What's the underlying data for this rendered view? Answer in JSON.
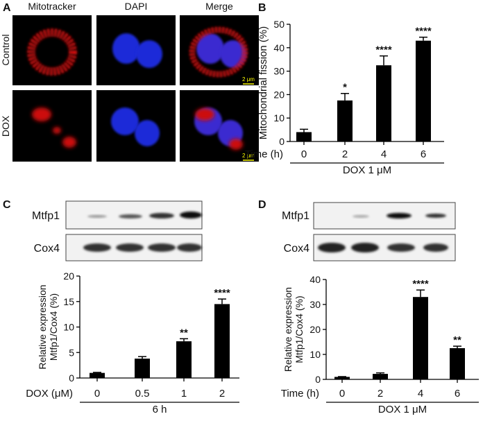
{
  "figure": {
    "panel_labels": [
      "A",
      "B",
      "C",
      "D"
    ],
    "microscopy": {
      "columns": [
        "Mitotracker",
        "DAPI",
        "Merge"
      ],
      "rows": [
        "Control",
        "DOX"
      ],
      "scale_bars": [
        "2 μm",
        "2 μm"
      ]
    },
    "blots": [
      {
        "bands": [
          "Mtfp1",
          "Cox4"
        ]
      },
      {
        "bands": [
          "Mtfp1",
          "Cox4"
        ]
      }
    ]
  },
  "chart_data": [
    {
      "type": "bar",
      "ylabel": "Mitochondrial fission (%)",
      "x_row_label": "Time (h)",
      "group_label": "DOX 1 μM",
      "categories": [
        "0",
        "2",
        "4",
        "6"
      ],
      "values": [
        4,
        17.5,
        32.5,
        43
      ],
      "errors": [
        1.2,
        3,
        4,
        1.5
      ],
      "annotations": [
        null,
        "*",
        "****",
        "****"
      ],
      "color": "#000000",
      "ylim": [
        0,
        50
      ],
      "yticks": [
        0,
        10,
        20,
        30,
        40,
        50
      ]
    },
    {
      "type": "bar",
      "ylabel": [
        "Relative expression",
        "Mtfp1/Cox4 (%)"
      ],
      "x_row_label": "DOX (μM)",
      "group_label": "6 h",
      "categories": [
        "0",
        "0.5",
        "1",
        "2"
      ],
      "values": [
        1,
        3.8,
        7.2,
        14.5
      ],
      "errors": [
        0.1,
        0.4,
        0.5,
        1
      ],
      "annotations": [
        null,
        null,
        "**",
        "****"
      ],
      "color": "#000000",
      "ylim": [
        0,
        20
      ],
      "yticks": [
        0,
        5,
        10,
        15,
        20
      ]
    },
    {
      "type": "bar",
      "ylabel": [
        "Relative expression",
        "Mtfp1/Cox4 (%)"
      ],
      "x_row_label": "Time (h)",
      "group_label": "DOX 1 μM",
      "categories": [
        "0",
        "2",
        "4",
        "6"
      ],
      "values": [
        1,
        2.2,
        33,
        12.5
      ],
      "errors": [
        0.1,
        0.4,
        2.8,
        0.8
      ],
      "annotations": [
        null,
        null,
        "****",
        "**"
      ],
      "color": "#000000",
      "ylim": [
        0,
        40
      ],
      "yticks": [
        0,
        10,
        20,
        30,
        40
      ]
    }
  ]
}
